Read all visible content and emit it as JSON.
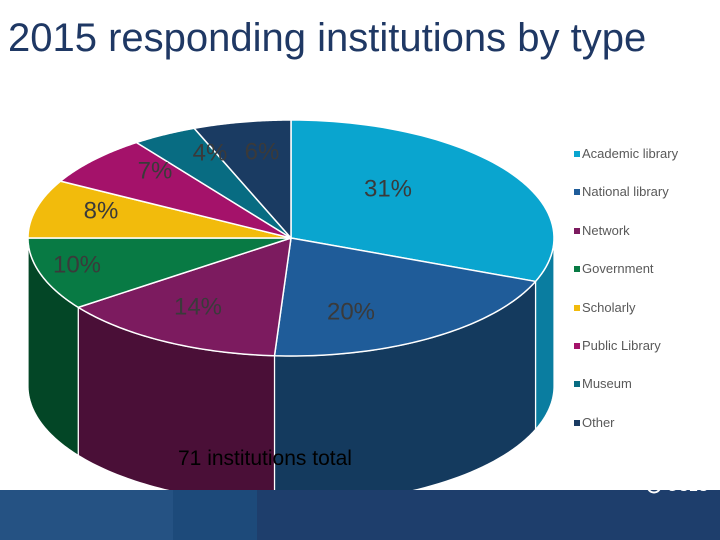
{
  "chart_data": {
    "type": "pie",
    "title": "2015 responding institutions by type",
    "subtitle": "71 institutions total",
    "legend_position": "right",
    "slices": [
      {
        "name": "Academic library",
        "value": 31,
        "label": "31%",
        "color": "#0aa5cf",
        "side": "#0a7da0"
      },
      {
        "name": "National library",
        "value": 20,
        "label": "20%",
        "color": "#1f5c99",
        "side": "#143a5e"
      },
      {
        "name": "Network",
        "value": 14,
        "label": "14%",
        "color": "#7c1b5f",
        "side": "#4a0f37"
      },
      {
        "name": "Government",
        "value": 10,
        "label": "10%",
        "color": "#087a44",
        "side": "#034626"
      },
      {
        "name": "Scholarly",
        "value": 8,
        "label": "8%",
        "color": "#f2bb0c",
        "side": "#b98e08"
      },
      {
        "name": "Public Library",
        "value": 7,
        "label": "7%",
        "color": "#a4126a",
        "side": "#6c0c46"
      },
      {
        "name": "Museum",
        "value": 4,
        "label": "4%",
        "color": "#086c82",
        "side": "#064a59"
      },
      {
        "name": "Other",
        "value": 6,
        "label": "6%",
        "color": "#1a3b62",
        "side": "#10253f"
      }
    ]
  },
  "footer": {
    "logo_text": "OCLC",
    "bar_color": "#1e3e6c"
  }
}
